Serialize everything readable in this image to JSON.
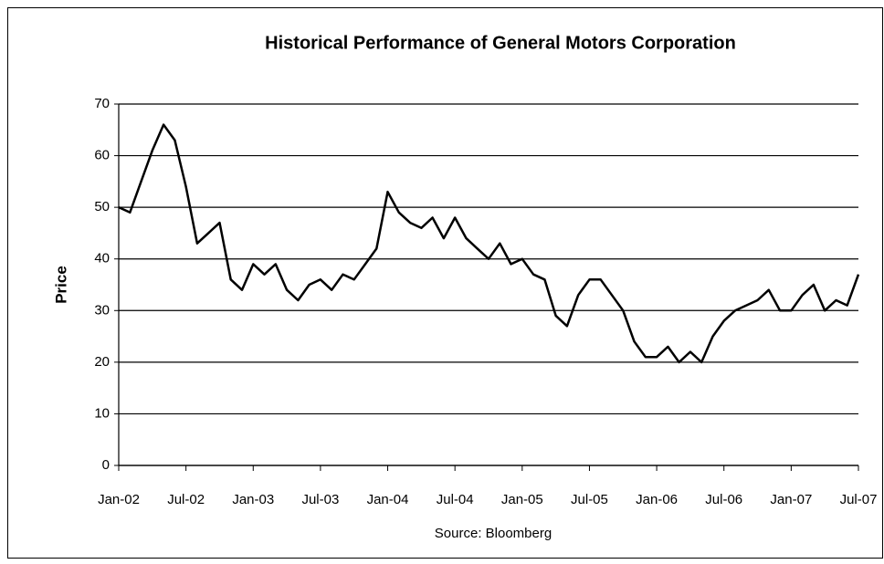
{
  "chart_data": {
    "type": "line",
    "title": "Historical Performance of General Motors Corporation",
    "ylabel": "Price",
    "source": "Source: Bloomberg",
    "x": [
      "2002-01",
      "2002-02",
      "2002-03",
      "2002-04",
      "2002-05",
      "2002-06",
      "2002-07",
      "2002-08",
      "2002-09",
      "2002-10",
      "2002-11",
      "2002-12",
      "2003-01",
      "2003-02",
      "2003-03",
      "2003-04",
      "2003-05",
      "2003-06",
      "2003-07",
      "2003-08",
      "2003-09",
      "2003-10",
      "2003-11",
      "2003-12",
      "2004-01",
      "2004-02",
      "2004-03",
      "2004-04",
      "2004-05",
      "2004-06",
      "2004-07",
      "2004-08",
      "2004-09",
      "2004-10",
      "2004-11",
      "2004-12",
      "2005-01",
      "2005-02",
      "2005-03",
      "2005-04",
      "2005-05",
      "2005-06",
      "2005-07",
      "2005-08",
      "2005-09",
      "2005-10",
      "2005-11",
      "2005-12",
      "2006-01",
      "2006-02",
      "2006-03",
      "2006-04",
      "2006-05",
      "2006-06",
      "2006-07",
      "2006-08",
      "2006-09",
      "2006-10",
      "2006-11",
      "2006-12",
      "2007-01",
      "2007-02",
      "2007-03",
      "2007-04",
      "2007-05",
      "2007-06",
      "2007-07"
    ],
    "series": [
      {
        "color": "#000000",
        "values": [
          50,
          49,
          55,
          61,
          66,
          63,
          54,
          43,
          45,
          47,
          36,
          34,
          39,
          37,
          39,
          34,
          32,
          35,
          36,
          34,
          37,
          36,
          39,
          42,
          53,
          49,
          47,
          46,
          48,
          44,
          48,
          44,
          42,
          40,
          43,
          39,
          40,
          37,
          36,
          29,
          27,
          33,
          36,
          36,
          33,
          30,
          24,
          21,
          21,
          23,
          20,
          22,
          20,
          25,
          28,
          30,
          31,
          32,
          34,
          30,
          30,
          33,
          35,
          30,
          32,
          31,
          37
        ]
      }
    ],
    "xticks": [
      {
        "value": "2002-01",
        "label": "Jan-02"
      },
      {
        "value": "2002-07",
        "label": "Jul-02"
      },
      {
        "value": "2003-01",
        "label": "Jan-03"
      },
      {
        "value": "2003-07",
        "label": "Jul-03"
      },
      {
        "value": "2004-01",
        "label": "Jan-04"
      },
      {
        "value": "2004-07",
        "label": "Jul-04"
      },
      {
        "value": "2005-01",
        "label": "Jan-05"
      },
      {
        "value": "2005-07",
        "label": "Jul-05"
      },
      {
        "value": "2006-01",
        "label": "Jan-06"
      },
      {
        "value": "2006-07",
        "label": "Jul-06"
      },
      {
        "value": "2007-01",
        "label": "Jan-07"
      },
      {
        "value": "2007-07",
        "label": "Jul-07"
      }
    ],
    "ylim": [
      0,
      70
    ],
    "yticks": [
      0,
      10,
      20,
      30,
      40,
      50,
      60,
      70
    ],
    "grid": true
  }
}
